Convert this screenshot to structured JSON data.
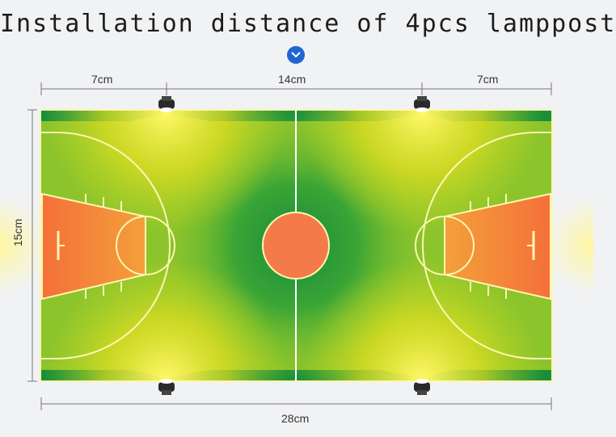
{
  "title": "Installation distance of 4pcs lamppost",
  "dimensions": {
    "top_left": "7cm",
    "top_middle": "14cm",
    "top_right": "7cm",
    "bottom": "28cm",
    "side": "15cm"
  },
  "lampposts": 4,
  "colors": {
    "court_green": "#1a8f3a",
    "lit_yellow": "#f2ea2a",
    "paint_orange": "#f47a3a",
    "lines": "#fff6b0",
    "chevron": "#1f66d1"
  }
}
